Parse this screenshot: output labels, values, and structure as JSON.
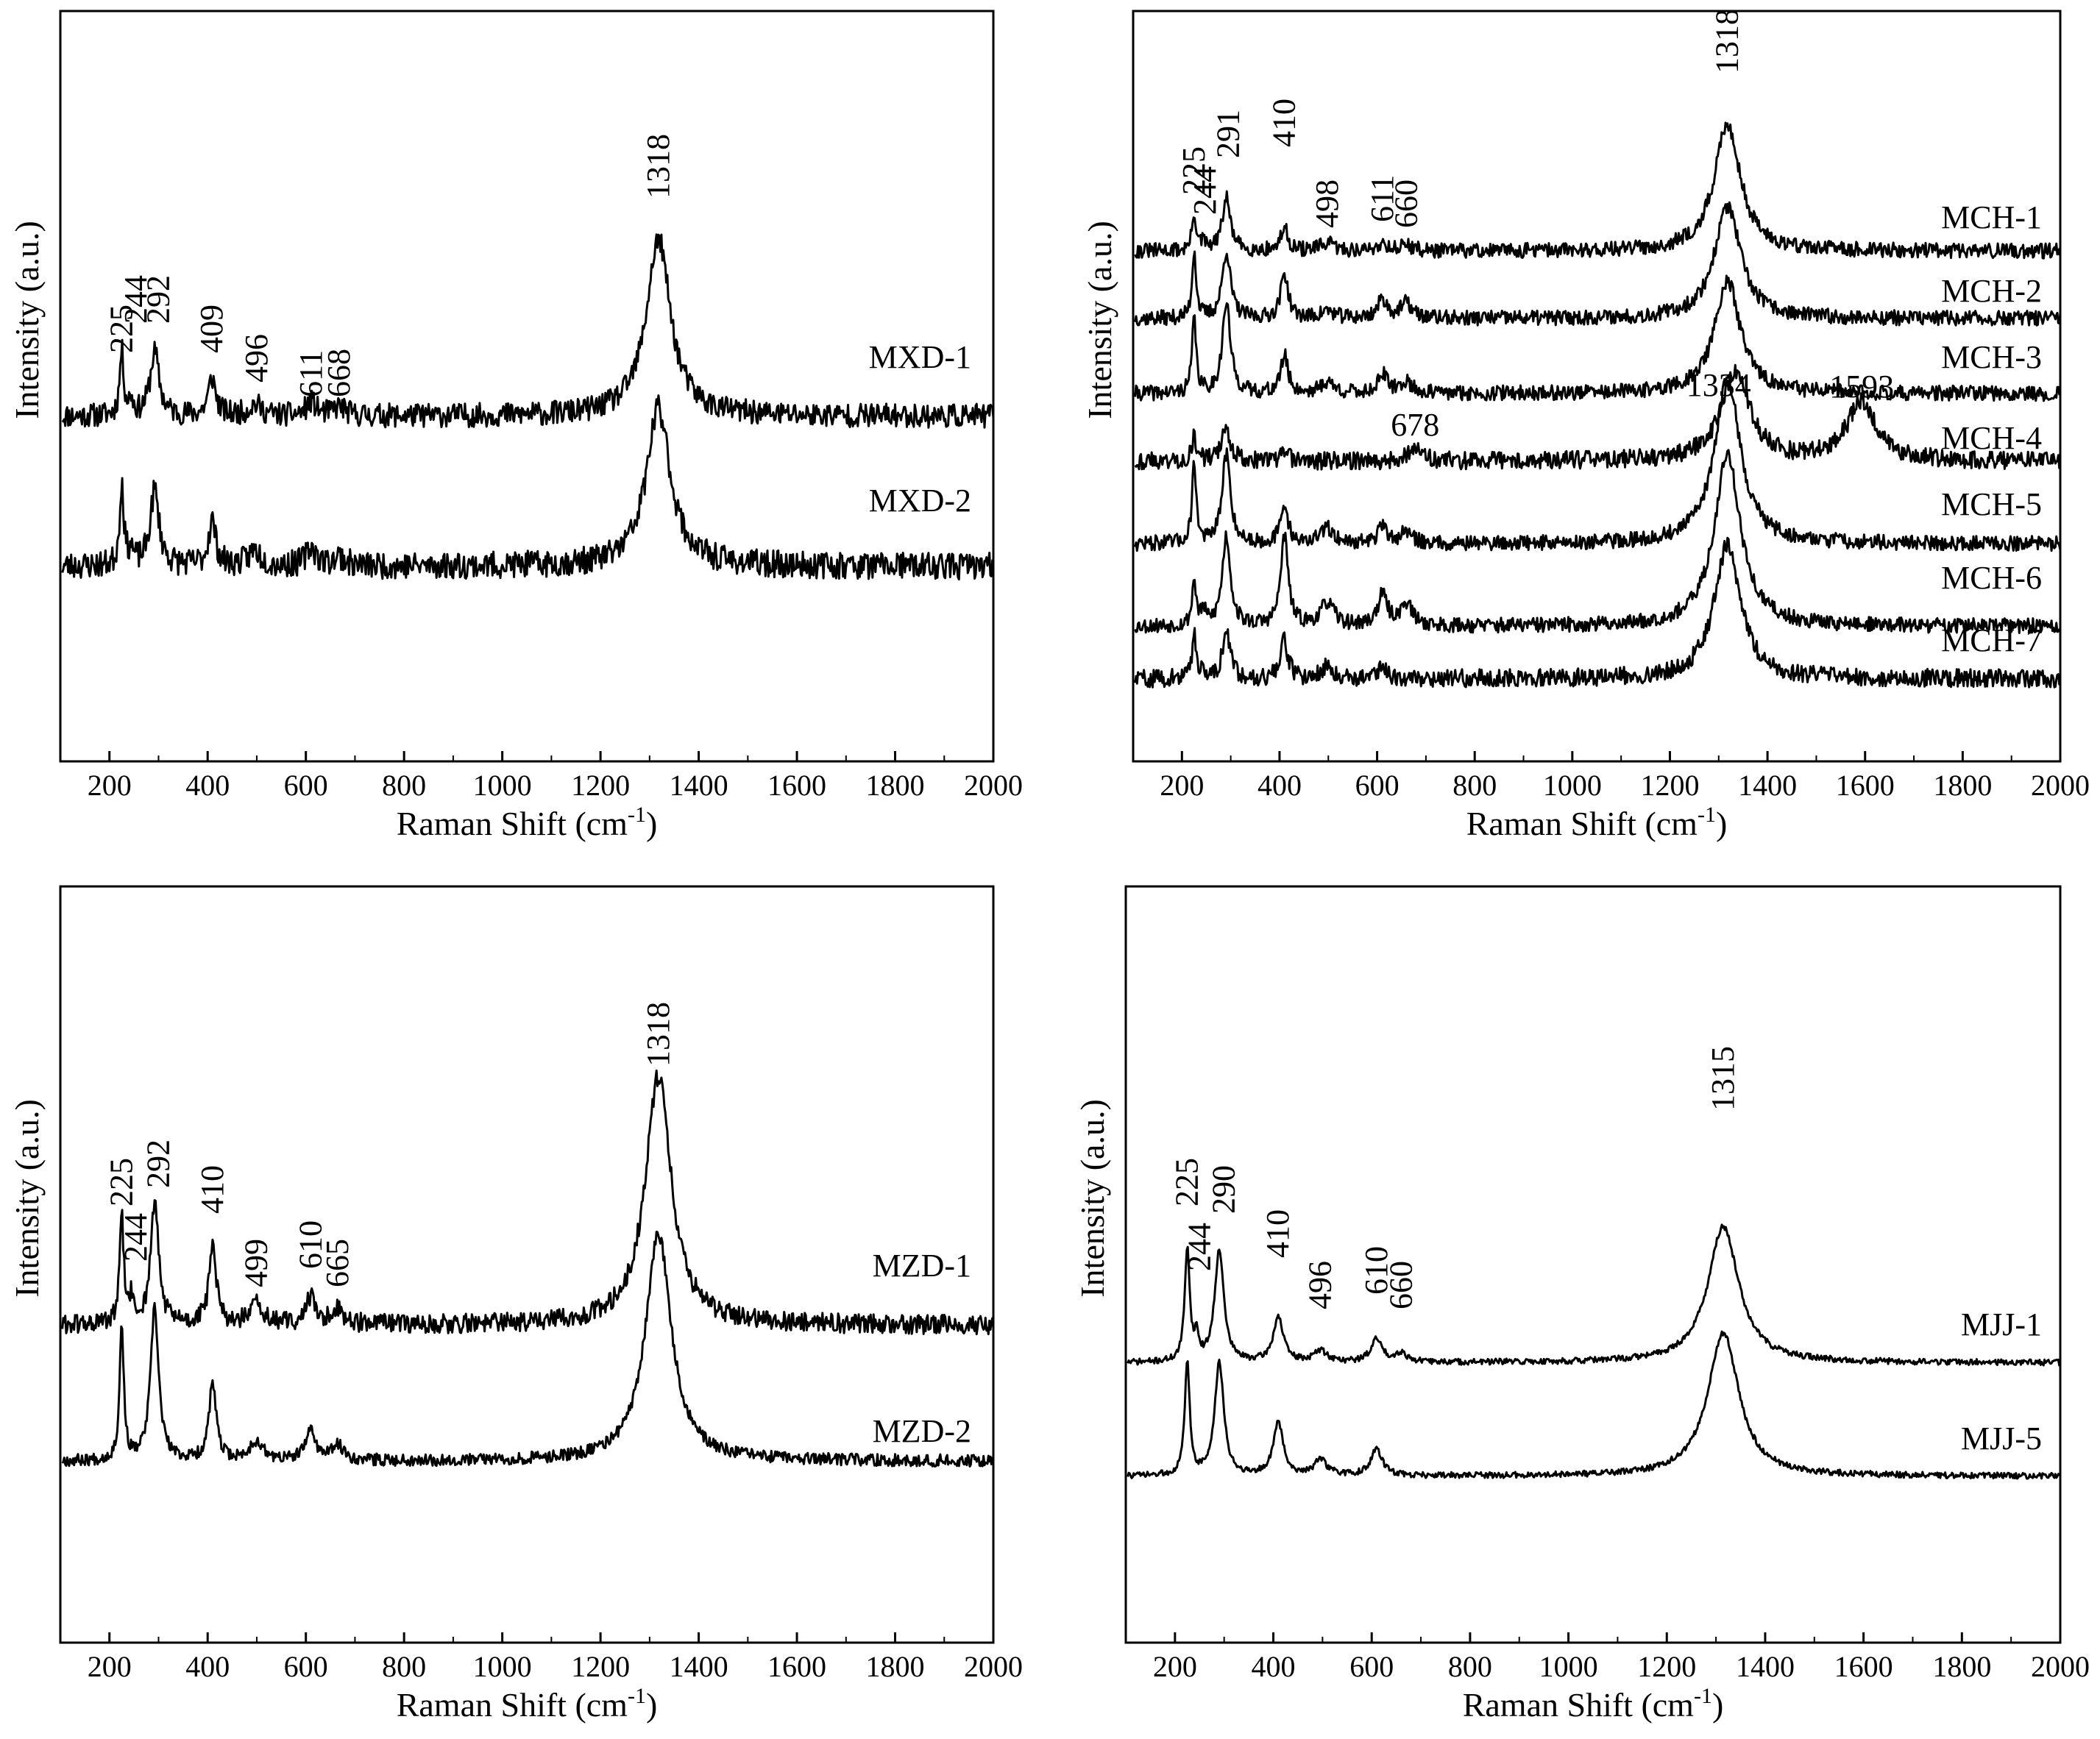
{
  "figure": {
    "ylabel": "Intensity (a.u.)",
    "xlabel_main": "Raman Shift (cm",
    "xlabel_sup": "-1",
    "xlabel_close": ")"
  },
  "chart_data": [
    {
      "type": "line",
      "panel": "top-left",
      "xlabel": "Raman Shift (cm-1)",
      "ylabel": "Intensity (a.u.)",
      "xlim": [
        100,
        2000
      ],
      "xticks": [
        200,
        400,
        600,
        800,
        1000,
        1200,
        1400,
        1600,
        1800,
        2000
      ],
      "grid": false,
      "series": [
        {
          "name": "MXD-1",
          "baseline": 0.46,
          "noise": 0.016,
          "seed": 11,
          "peaks": [
            [
              225,
              0.085,
              5
            ],
            [
              244,
              0.02,
              5
            ],
            [
              292,
              0.085,
              11
            ],
            [
              409,
              0.05,
              9
            ],
            [
              496,
              0.015,
              16
            ],
            [
              611,
              0.018,
              12
            ],
            [
              668,
              0.012,
              14
            ],
            [
              1318,
              0.235,
              30
            ]
          ]
        },
        {
          "name": "MXD-2",
          "baseline": 0.26,
          "noise": 0.018,
          "seed": 23,
          "peaks": [
            [
              225,
              0.11,
              5
            ],
            [
              244,
              0.02,
              5
            ],
            [
              292,
              0.1,
              11
            ],
            [
              409,
              0.06,
              9
            ],
            [
              496,
              0.02,
              16
            ],
            [
              611,
              0.025,
              12
            ],
            [
              668,
              0.012,
              14
            ],
            [
              1318,
              0.21,
              30
            ]
          ]
        }
      ],
      "annotations": [
        "225",
        "244",
        "292",
        "409",
        "496",
        "611",
        "668",
        "1318"
      ]
    },
    {
      "type": "line",
      "panel": "top-right",
      "xlabel": "Raman Shift (cm-1)",
      "ylabel": "Intensity (a.u.)",
      "xlim": [
        100,
        2000
      ],
      "xticks": [
        200,
        400,
        600,
        800,
        1000,
        1200,
        1400,
        1600,
        1800,
        2000
      ],
      "grid": false,
      "series": [
        {
          "name": "MCH-1",
          "baseline": 0.68,
          "noise": 0.01,
          "seed": 31,
          "peaks": [
            [
              225,
              0.05,
              5
            ],
            [
              244,
              0.01,
              5
            ],
            [
              291,
              0.07,
              10
            ],
            [
              410,
              0.03,
              9
            ],
            [
              498,
              0.01,
              16
            ],
            [
              611,
              0.01,
              12
            ],
            [
              660,
              0.008,
              14
            ],
            [
              1318,
              0.17,
              32
            ]
          ]
        },
        {
          "name": "MCH-2",
          "baseline": 0.59,
          "noise": 0.01,
          "seed": 37,
          "peaks": [
            [
              225,
              0.09,
              5
            ],
            [
              291,
              0.09,
              10
            ],
            [
              410,
              0.06,
              9
            ],
            [
              498,
              0.01,
              16
            ],
            [
              611,
              0.025,
              12
            ],
            [
              660,
              0.02,
              14
            ],
            [
              1318,
              0.15,
              32
            ]
          ]
        },
        {
          "name": "MCH-3",
          "baseline": 0.49,
          "noise": 0.01,
          "seed": 41,
          "peaks": [
            [
              225,
              0.1,
              5
            ],
            [
              291,
              0.12,
              10
            ],
            [
              410,
              0.05,
              9
            ],
            [
              498,
              0.015,
              16
            ],
            [
              611,
              0.025,
              12
            ],
            [
              660,
              0.015,
              14
            ],
            [
              1318,
              0.15,
              32
            ]
          ]
        },
        {
          "name": "MCH-4",
          "baseline": 0.4,
          "noise": 0.012,
          "seed": 43,
          "peaks": [
            [
              225,
              0.03,
              6
            ],
            [
              291,
              0.04,
              12
            ],
            [
              410,
              0.01,
              10
            ],
            [
              678,
              0.02,
              14
            ],
            [
              1334,
              0.12,
              35
            ],
            [
              1593,
              0.08,
              35
            ]
          ]
        },
        {
          "name": "MCH-5",
          "baseline": 0.29,
          "noise": 0.01,
          "seed": 47,
          "peaks": [
            [
              225,
              0.11,
              5
            ],
            [
              291,
              0.12,
              10
            ],
            [
              410,
              0.05,
              9
            ],
            [
              498,
              0.02,
              16
            ],
            [
              611,
              0.02,
              12
            ],
            [
              660,
              0.015,
              14
            ],
            [
              1318,
              0.22,
              32
            ]
          ]
        },
        {
          "name": "MCH-6",
          "baseline": 0.18,
          "noise": 0.01,
          "seed": 53,
          "peaks": [
            [
              225,
              0.06,
              5
            ],
            [
              244,
              0.02,
              5
            ],
            [
              291,
              0.12,
              10
            ],
            [
              410,
              0.12,
              9
            ],
            [
              498,
              0.03,
              16
            ],
            [
              611,
              0.04,
              12
            ],
            [
              660,
              0.03,
              14
            ],
            [
              1318,
              0.23,
              32
            ]
          ]
        },
        {
          "name": "MCH-7",
          "baseline": 0.11,
          "noise": 0.012,
          "seed": 59,
          "peaks": [
            [
              225,
              0.06,
              5
            ],
            [
              244,
              0.01,
              5
            ],
            [
              291,
              0.06,
              10
            ],
            [
              410,
              0.05,
              9
            ],
            [
              498,
              0.015,
              16
            ],
            [
              611,
              0.015,
              12
            ],
            [
              1318,
              0.18,
              32
            ]
          ]
        }
      ],
      "annotations": [
        "225",
        "244",
        "291",
        "410",
        "498",
        "611",
        "660",
        "1318",
        "1334",
        "678",
        "1593"
      ]
    },
    {
      "type": "line",
      "panel": "bottom-left",
      "xlabel": "Raman Shift (cm-1)",
      "ylabel": "Intensity (a.u.)",
      "xlim": [
        100,
        2000
      ],
      "xticks": [
        200,
        400,
        600,
        800,
        1000,
        1200,
        1400,
        1600,
        1800,
        2000
      ],
      "grid": false,
      "series": [
        {
          "name": "MZD-1",
          "baseline": 0.42,
          "noise": 0.013,
          "seed": 61,
          "peaks": [
            [
              225,
              0.14,
              5
            ],
            [
              244,
              0.03,
              5
            ],
            [
              292,
              0.16,
              10
            ],
            [
              410,
              0.1,
              9
            ],
            [
              499,
              0.025,
              16
            ],
            [
              610,
              0.035,
              12
            ],
            [
              665,
              0.02,
              14
            ],
            [
              1318,
              0.33,
              32
            ]
          ]
        },
        {
          "name": "MZD-2",
          "baseline": 0.24,
          "noise": 0.008,
          "seed": 67,
          "peaks": [
            [
              225,
              0.18,
              5
            ],
            [
              292,
              0.2,
              10
            ],
            [
              410,
              0.1,
              9
            ],
            [
              499,
              0.025,
              16
            ],
            [
              610,
              0.04,
              12
            ],
            [
              665,
              0.02,
              14
            ],
            [
              1318,
              0.3,
              32
            ]
          ]
        }
      ],
      "annotations": [
        "225",
        "244",
        "292",
        "410",
        "499",
        "610",
        "665",
        "1318"
      ]
    },
    {
      "type": "line",
      "panel": "bottom-right",
      "xlabel": "Raman Shift (cm-1)",
      "ylabel": "Intensity (a.u.)",
      "xlim": [
        100,
        2000
      ],
      "xticks": [
        200,
        400,
        600,
        800,
        1000,
        1200,
        1400,
        1600,
        1800,
        2000
      ],
      "grid": false,
      "series": [
        {
          "name": "MJJ-1",
          "baseline": 0.37,
          "noise": 0.004,
          "seed": 71,
          "peaks": [
            [
              225,
              0.15,
              6
            ],
            [
              244,
              0.03,
              5
            ],
            [
              290,
              0.15,
              11
            ],
            [
              410,
              0.06,
              12
            ],
            [
              496,
              0.015,
              16
            ],
            [
              610,
              0.03,
              14
            ],
            [
              660,
              0.012,
              14
            ],
            [
              1315,
              0.18,
              38
            ]
          ]
        },
        {
          "name": "MJJ-5",
          "baseline": 0.22,
          "noise": 0.004,
          "seed": 73,
          "peaks": [
            [
              225,
              0.15,
              6
            ],
            [
              290,
              0.15,
              11
            ],
            [
              410,
              0.07,
              12
            ],
            [
              496,
              0.02,
              16
            ],
            [
              610,
              0.035,
              14
            ],
            [
              1315,
              0.19,
              38
            ]
          ]
        }
      ],
      "annotations": [
        "225",
        "244",
        "290",
        "410",
        "496",
        "610",
        "660",
        "1315"
      ]
    }
  ]
}
